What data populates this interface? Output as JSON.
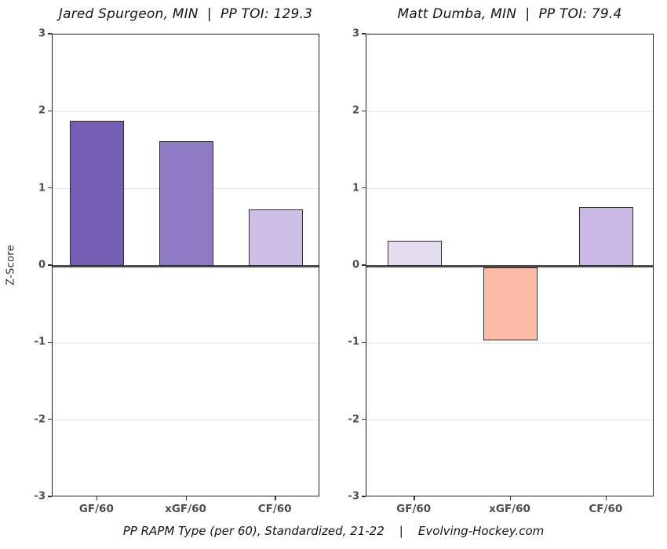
{
  "figure": {
    "ylabel": "Z-Score",
    "caption": "PP RAPM Type (per 60), Standardized, 21-22    |    Evolving-Hockey.com",
    "y_ticks": [
      3,
      2,
      1,
      0,
      -1,
      -2,
      -3
    ],
    "colors": {
      "background": "#ffffff",
      "gridline": "#e4e4e4",
      "zero_line": "#4a4a4a",
      "axis_border": "#1f1f1f",
      "tick_label": "#4d4d4d",
      "title_text": "#141414"
    }
  },
  "chart_data": [
    {
      "type": "bar",
      "title": "Jared Spurgeon, MIN  |  PP TOI: 129.3",
      "player": "Jared Spurgeon",
      "team": "MIN",
      "pp_toi": 129.3,
      "categories": [
        "GF/60",
        "xGF/60",
        "CF/60"
      ],
      "values": [
        1.88,
        1.62,
        0.73
      ],
      "bar_colors": [
        "#7560b5",
        "#8d7cc4",
        "#cdc0e4"
      ],
      "xlabel": "",
      "ylabel": "Z-Score",
      "ylim": [
        -3,
        3
      ],
      "grid": true,
      "legend": "none"
    },
    {
      "type": "bar",
      "title": "Matt Dumba, MIN  |  PP TOI: 79.4",
      "player": "Matt Dumba",
      "team": "MIN",
      "pp_toi": 79.4,
      "categories": [
        "GF/60",
        "xGF/60",
        "CF/60"
      ],
      "values": [
        0.33,
        -0.95,
        0.76
      ],
      "bar_colors": [
        "#e5def0",
        "#fdbca8",
        "#c9b8e6"
      ],
      "xlabel": "",
      "ylabel": "",
      "ylim": [
        -3,
        3
      ],
      "grid": true,
      "legend": "none"
    }
  ]
}
